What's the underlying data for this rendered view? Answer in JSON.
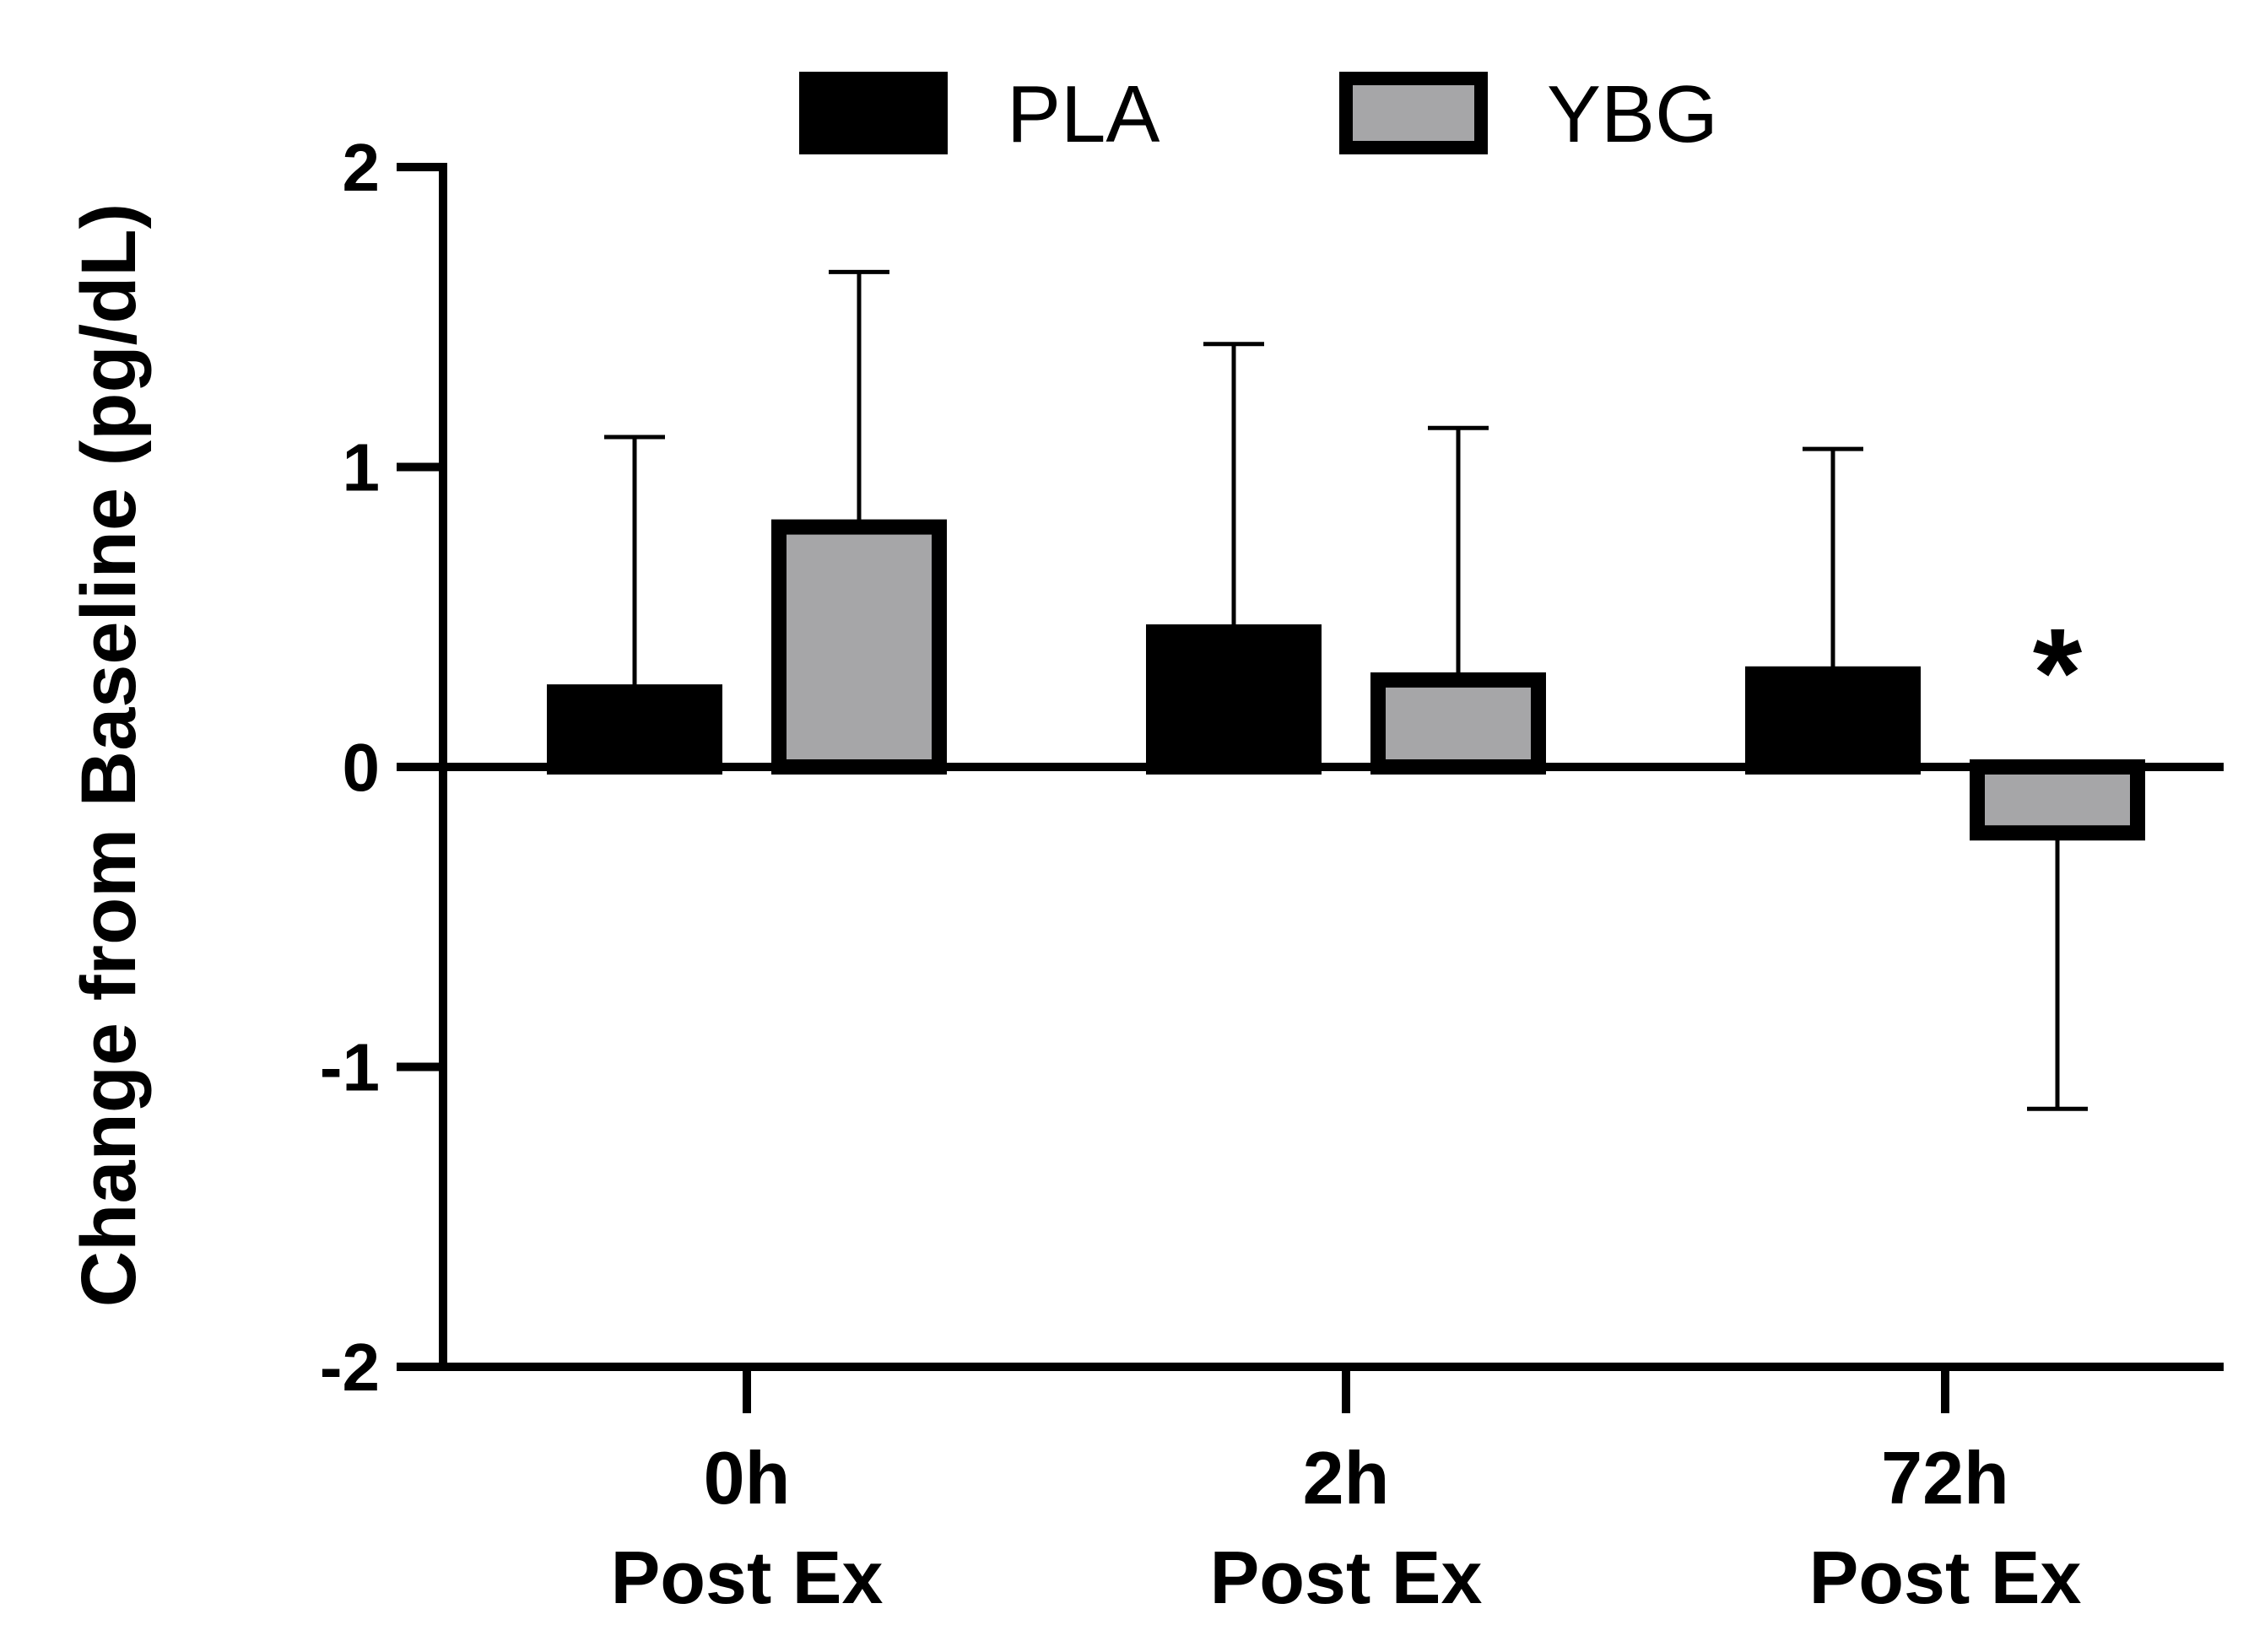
{
  "chart_data": {
    "type": "bar",
    "title": "",
    "xlabel": "",
    "ylabel": "Change from Baseline (pg/dL)",
    "ylim": [
      -2,
      2
    ],
    "yticks": [
      2,
      1,
      0,
      -1,
      -2
    ],
    "ytick_labels": [
      "2",
      "1",
      "0",
      "-1",
      "-2"
    ],
    "grid": false,
    "legend_position": "top-center",
    "categories": [
      {
        "line1": "0h",
        "line2": "Post Ex"
      },
      {
        "line1": "2h",
        "line2": "Post Ex"
      },
      {
        "line1": "72h",
        "line2": "Post Ex"
      }
    ],
    "series": [
      {
        "name": "PLA",
        "fill": "#000000",
        "stroke": "#000000",
        "values": [
          0.25,
          0.45,
          0.31
        ],
        "error_upper": [
          0.85,
          0.96,
          0.75
        ],
        "error_lower": [
          0,
          0,
          0
        ]
      },
      {
        "name": "YBG",
        "fill": "#a6a6a8",
        "stroke": "#000000",
        "values": [
          0.8,
          0.29,
          -0.22
        ],
        "error_upper": [
          0.85,
          0.84,
          0
        ],
        "error_lower": [
          0,
          0,
          0.92
        ]
      }
    ],
    "annotations": [
      {
        "text": "*",
        "category_index": 2,
        "series_index": 1,
        "y": 0.45
      }
    ]
  }
}
